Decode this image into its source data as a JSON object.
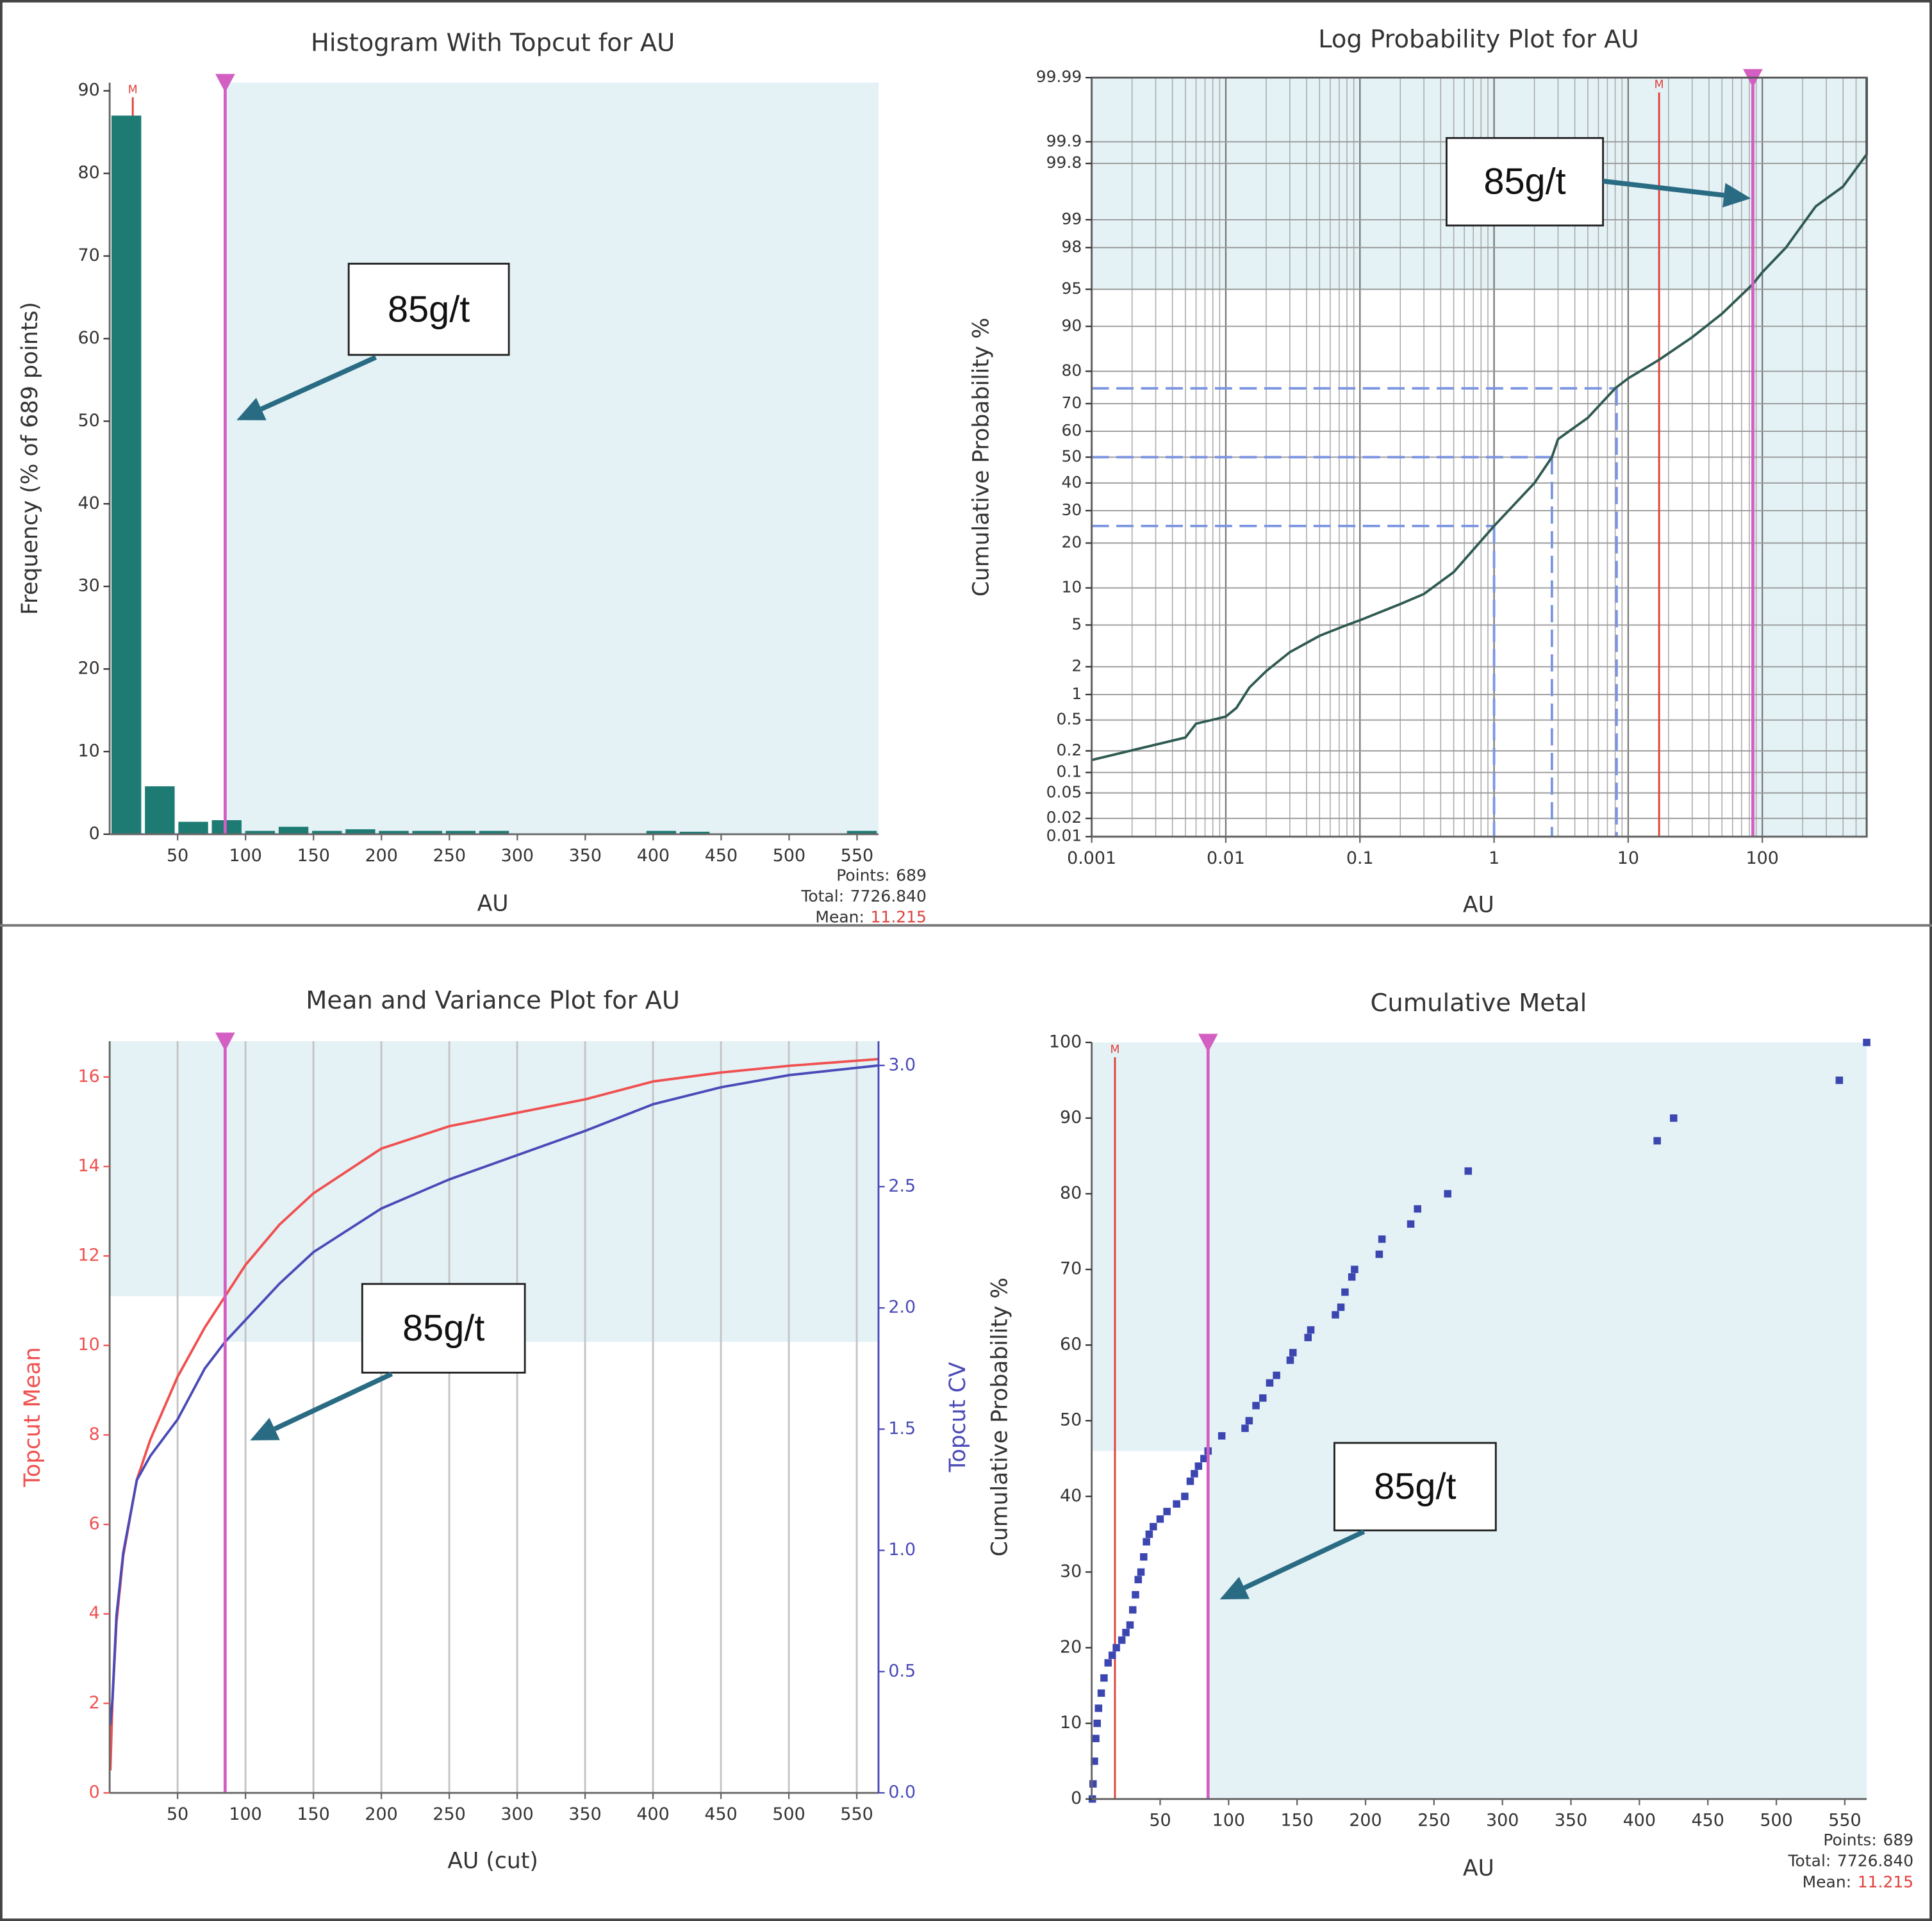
{
  "chart_data": [
    {
      "type": "histogram",
      "title": "Histogram With Topcut for AU",
      "x_label": "AU",
      "y_label": "Frequency (% of 689 points)",
      "bins": [
        0,
        24.6,
        49.2,
        73.8,
        98.4,
        123,
        147.6,
        172.2,
        196.8,
        221.4,
        246,
        270.6,
        295.2,
        319.8,
        344.4,
        369,
        393.6,
        418.2,
        442.8,
        467.4,
        492,
        516.6,
        541.2,
        565.8
      ],
      "values": [
        87,
        5.8,
        1.5,
        1.7,
        0.4,
        0.9,
        0.4,
        0.6,
        0.4,
        0.4,
        0.4,
        0.4,
        0,
        0,
        0,
        0,
        0.4,
        0.3,
        0,
        0,
        0,
        0,
        0.4
      ],
      "color": "#1d7b74",
      "xlim": [
        0,
        565.8
      ],
      "xticks": [
        50,
        100,
        150,
        200,
        250,
        300,
        350,
        400,
        450,
        500,
        550
      ],
      "ylim": [
        0,
        91
      ],
      "yticks": [
        0,
        10,
        20,
        30,
        40,
        50,
        60,
        70,
        80,
        90
      ],
      "topcut": 85,
      "topcut_color": "#d45fc2",
      "shade_color": "#e4f2f6",
      "reference_lines": [
        {
          "label": "M",
          "value": 17,
          "color": "#e0403a"
        }
      ],
      "annotation": "85g/t",
      "stats": [
        {
          "label": "Points:",
          "text": "689"
        },
        {
          "label": "Total:",
          "text": "7726.840"
        },
        {
          "label": "Mean:",
          "text": "11.215",
          "color": "#e0403a"
        }
      ]
    },
    {
      "type": "line",
      "title": "Log Probability Plot for AU",
      "x_label": "AU",
      "y_label": "Cumulative Probability %",
      "x_scale": "log",
      "y_scale": "probability",
      "x": [
        0.001,
        0.005,
        0.006,
        0.01,
        0.012,
        0.015,
        0.02,
        0.03,
        0.05,
        0.08,
        0.1,
        0.2,
        0.3,
        0.5,
        1,
        2,
        2.7,
        3,
        5,
        8,
        10,
        17,
        30,
        50,
        85,
        100,
        150,
        250,
        400,
        600,
        600
      ],
      "series": [
        {
          "color": "#2f5a52",
          "values": [
            0.15,
            0.3,
            0.45,
            0.55,
            0.7,
            1.2,
            1.8,
            2.8,
            4,
            5,
            5.5,
            7.5,
            9,
            13,
            25,
            40,
            50,
            57,
            65,
            75,
            78,
            83,
            88,
            92,
            95.5,
            96.5,
            98,
            99.3,
            99.6,
            99.85,
            99.99
          ]
        }
      ],
      "xlim": [
        0.001,
        600
      ],
      "xticks": [
        0.001,
        0.01,
        0.1,
        1,
        10,
        100
      ],
      "ylim": [
        0.01,
        99.99
      ],
      "yticks": [
        0.01,
        0.02,
        0.05,
        0.1,
        0.2,
        0.5,
        1,
        2,
        5,
        10,
        20,
        30,
        40,
        50,
        60,
        70,
        80,
        90,
        95,
        98,
        99,
        99.8,
        99.9,
        99.99
      ],
      "grid": "both",
      "topcut": 85,
      "topcut_color": "#d45fc2",
      "shade_color": "#e4f2f6",
      "shade_y": 95,
      "quantiles": [
        {
          "x": 1,
          "y": 25
        },
        {
          "x": 2.7,
          "y": 50
        },
        {
          "x": 8.2,
          "y": 75
        }
      ],
      "quantile_color": "#7c95e0",
      "reference_lines": [
        {
          "label": "M",
          "value": 17,
          "color": "#e0403a"
        }
      ],
      "annotation": "85g/t"
    },
    {
      "type": "line",
      "title": "Mean and Variance Plot for AU",
      "x_label": "AU (cut)",
      "y_label": "Topcut Mean",
      "y2_label": "Topcut CV",
      "x": [
        0.5,
        2,
        5,
        10,
        20,
        30,
        50,
        70,
        85,
        100,
        125,
        150,
        200,
        250,
        300,
        350,
        400,
        450,
        500,
        566
      ],
      "series": [
        {
          "color": "#f05050",
          "values": [
            0.5,
            2,
            3.8,
            5.3,
            7,
            7.9,
            9.3,
            10.4,
            11.1,
            11.8,
            12.7,
            13.4,
            14.4,
            14.9,
            15.2,
            15.5,
            15.9,
            16.1,
            16.25,
            16.4
          ]
        },
        {
          "color": "#4a4ab8",
          "axis": "y2",
          "values": [
            0.28,
            0.38,
            0.73,
            0.99,
            1.29,
            1.39,
            1.54,
            1.75,
            1.86,
            1.95,
            2.1,
            2.23,
            2.41,
            2.53,
            2.63,
            2.73,
            2.84,
            2.91,
            2.96,
            3.0
          ]
        }
      ],
      "xlim": [
        0,
        566
      ],
      "xticks": [
        50,
        100,
        150,
        200,
        250,
        300,
        350,
        400,
        450,
        500,
        550
      ],
      "ylim": [
        0,
        16.8
      ],
      "yticks": [
        0,
        2,
        4,
        6,
        8,
        10,
        12,
        14,
        16
      ],
      "y2lim": [
        0,
        3.1
      ],
      "y2ticks": [
        {
          "value": 0,
          "label": "0.0"
        },
        0.5,
        {
          "value": 1,
          "label": "1.0"
        },
        1.5,
        {
          "value": 2,
          "label": "2.0"
        },
        2.5,
        {
          "value": 3,
          "label": "3.0"
        }
      ],
      "grid": "x",
      "topcut": 85,
      "topcut_color": "#d45fc2",
      "shade_color": "#e4f2f6",
      "annotation": "85g/t"
    },
    {
      "type": "scatter",
      "title": "Cumulative Metal",
      "x_label": "AU",
      "y_label": "Cumulative Probability %",
      "x": [
        0.5,
        1,
        2,
        3,
        4,
        5,
        7,
        9,
        12,
        15,
        18,
        22,
        25,
        28,
        30,
        32,
        34,
        36,
        38,
        40,
        42,
        45,
        50,
        55,
        62,
        68,
        72,
        75,
        78,
        82,
        85,
        95,
        112,
        115,
        120,
        125,
        130,
        135,
        145,
        147,
        158,
        160,
        178,
        182,
        185,
        190,
        192,
        210,
        212,
        233,
        238,
        260,
        275,
        413,
        425,
        546,
        566
      ],
      "values": [
        0,
        2,
        5,
        8,
        10,
        12,
        14,
        16,
        18,
        19,
        20,
        21,
        22,
        23,
        25,
        27,
        29,
        30,
        32,
        34,
        35,
        36,
        37,
        38,
        39,
        40,
        42,
        43,
        44,
        45,
        46,
        48,
        49,
        50,
        52,
        53,
        55,
        56,
        58,
        59,
        61,
        62,
        64,
        65,
        67,
        69,
        70,
        72,
        74,
        76,
        78,
        80,
        83,
        87,
        90,
        95,
        100
      ],
      "color": "#3b46b0",
      "xlim": [
        0,
        566
      ],
      "xticks": [
        50,
        100,
        150,
        200,
        250,
        300,
        350,
        400,
        450,
        500,
        550
      ],
      "ylim": [
        0,
        100
      ],
      "yticks": [
        0,
        10,
        20,
        30,
        40,
        50,
        60,
        70,
        80,
        90,
        100
      ],
      "topcut": 85,
      "topcut_color": "#d45fc2",
      "shade_color": "#e4f2f6",
      "reference_lines": [
        {
          "label": "M",
          "value": 17,
          "color": "#e0403a"
        }
      ],
      "annotation": "85g/t",
      "stats": [
        {
          "label": "Points:",
          "text": "689"
        },
        {
          "label": "Total:",
          "text": "7726.840"
        },
        {
          "label": "Mean:",
          "text": "11.215",
          "color": "#e0403a"
        }
      ]
    }
  ]
}
